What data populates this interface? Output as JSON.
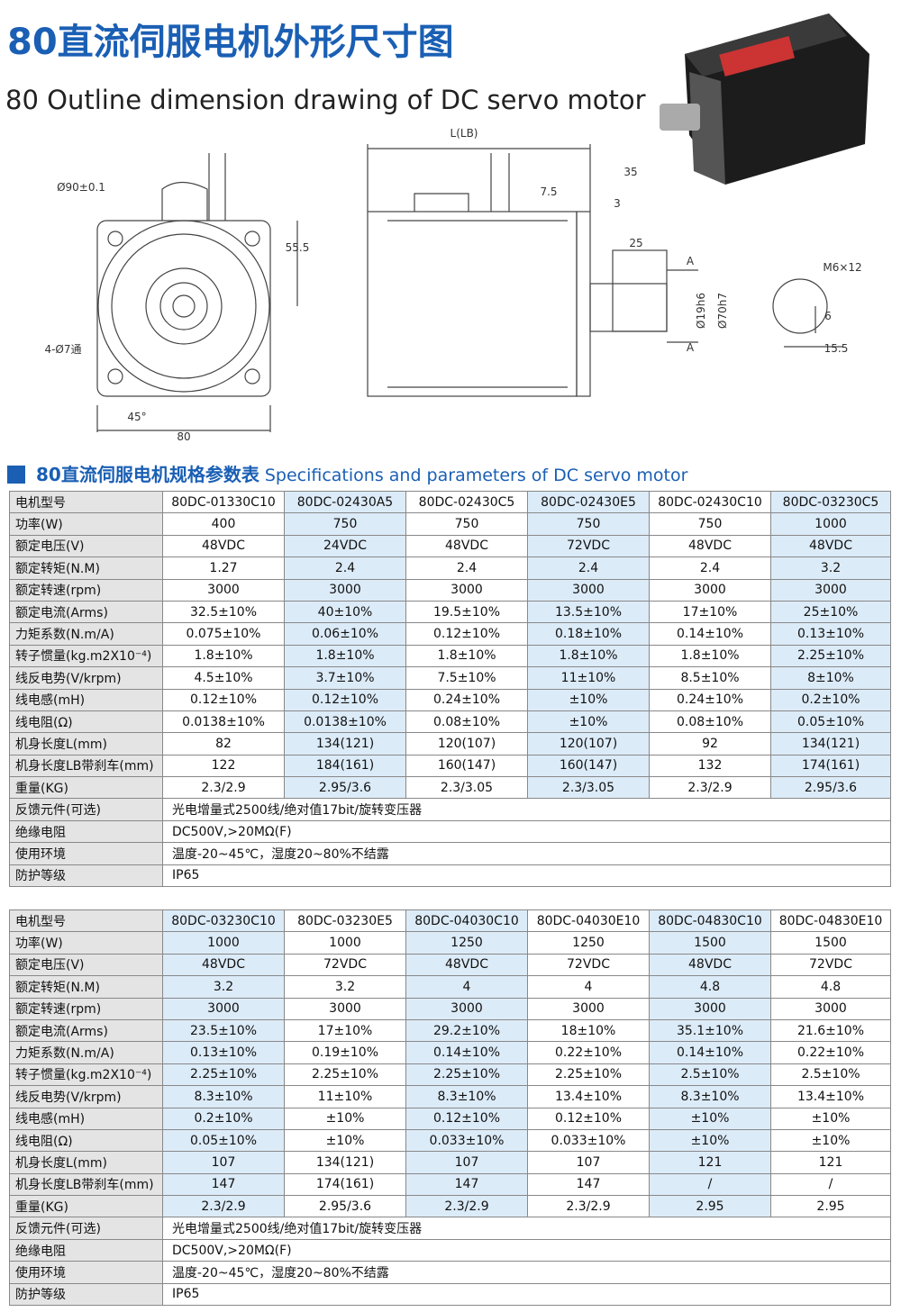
{
  "header": {
    "title": "80直流伺服电机外形尺寸图",
    "subtitle": "80 Outline dimension drawing of DC servo motor"
  },
  "drawing": {
    "labels": [
      "Ø90±0.1",
      "55.5",
      "4-Ø7通",
      "45°",
      "80",
      "L(LB)",
      "35",
      "7.5",
      "3",
      "25",
      "A",
      "A",
      "Ø19h6",
      "Ø70h7",
      "M6×12",
      "6",
      "15.5"
    ]
  },
  "section": {
    "title_cn": "80直流伺服电机规格参数表",
    "title_en": "Specifications and parameters of DC servo motor"
  },
  "tables": [
    {
      "header_label": "电机型号",
      "columns": [
        "80DC-01330C10",
        "80DC-02430A5",
        "80DC-02430C5",
        "80DC-02430E5",
        "80DC-02430C10",
        "80DC-03230C5"
      ],
      "rows": [
        {
          "label": "功率(W)",
          "values": [
            "400",
            "750",
            "750",
            "750",
            "750",
            "1000"
          ]
        },
        {
          "label": "额定电压(V)",
          "values": [
            "48VDC",
            "24VDC",
            "48VDC",
            "72VDC",
            "48VDC",
            "48VDC"
          ]
        },
        {
          "label": "额定转矩(N.M)",
          "values": [
            "1.27",
            "2.4",
            "2.4",
            "2.4",
            "2.4",
            "3.2"
          ]
        },
        {
          "label": "额定转速(rpm)",
          "values": [
            "3000",
            "3000",
            "3000",
            "3000",
            "3000",
            "3000"
          ]
        },
        {
          "label": "额定电流(Arms)",
          "values": [
            "32.5±10%",
            "40±10%",
            "19.5±10%",
            "13.5±10%",
            "17±10%",
            "25±10%"
          ]
        },
        {
          "label": "力矩系数(N.m/A)",
          "values": [
            "0.075±10%",
            "0.06±10%",
            "0.12±10%",
            "0.18±10%",
            "0.14±10%",
            "0.13±10%"
          ]
        },
        {
          "label": "转子惯量(kg.m2X10⁻⁴)",
          "values": [
            "1.8±10%",
            "1.8±10%",
            "1.8±10%",
            "1.8±10%",
            "1.8±10%",
            "2.25±10%"
          ]
        },
        {
          "label": "线反电势(V/krpm)",
          "values": [
            "4.5±10%",
            "3.7±10%",
            "7.5±10%",
            "11±10%",
            "8.5±10%",
            "8±10%"
          ]
        },
        {
          "label": "线电感(mH)",
          "values": [
            "0.12±10%",
            "0.12±10%",
            "0.24±10%",
            "±10%",
            "0.24±10%",
            "0.2±10%"
          ]
        },
        {
          "label": "线电阻(Ω)",
          "values": [
            "0.0138±10%",
            "0.0138±10%",
            "0.08±10%",
            "±10%",
            "0.08±10%",
            "0.05±10%"
          ]
        },
        {
          "label": "机身长度L(mm)",
          "values": [
            "82",
            "134(121)",
            "120(107)",
            "120(107)",
            "92",
            "134(121)"
          ]
        },
        {
          "label": "机身长度LB带刹车(mm)",
          "values": [
            "122",
            "184(161)",
            "160(147)",
            "160(147)",
            "132",
            "174(161)"
          ]
        },
        {
          "label": "重量(KG)",
          "values": [
            "2.3/2.9",
            "2.95/3.6",
            "2.3/3.05",
            "2.3/3.05",
            "2.3/2.9",
            "2.95/3.6"
          ]
        }
      ],
      "spans": [
        {
          "label": "反馈元件(可选)",
          "value": "光电增量式2500线/绝对值17bit/旋转变压器"
        },
        {
          "label": "绝缘电阻",
          "value": "DC500V,>20MΩ(F)"
        },
        {
          "label": "使用环境",
          "value": "温度-20~45℃，湿度20~80%不结露"
        },
        {
          "label": "防护等级",
          "value": "IP65"
        }
      ]
    },
    {
      "header_label": "电机型号",
      "columns": [
        "80DC-03230C10",
        "80DC-03230E5",
        "80DC-04030C10",
        "80DC-04030E10",
        "80DC-04830C10",
        "80DC-04830E10"
      ],
      "rows": [
        {
          "label": "功率(W)",
          "values": [
            "1000",
            "1000",
            "1250",
            "1250",
            "1500",
            "1500"
          ]
        },
        {
          "label": "额定电压(V)",
          "values": [
            "48VDC",
            "72VDC",
            "48VDC",
            "72VDC",
            "48VDC",
            "72VDC"
          ]
        },
        {
          "label": "额定转矩(N.M)",
          "values": [
            "3.2",
            "3.2",
            "4",
            "4",
            "4.8",
            "4.8"
          ]
        },
        {
          "label": "额定转速(rpm)",
          "values": [
            "3000",
            "3000",
            "3000",
            "3000",
            "3000",
            "3000"
          ]
        },
        {
          "label": "额定电流(Arms)",
          "values": [
            "23.5±10%",
            "17±10%",
            "29.2±10%",
            "18±10%",
            "35.1±10%",
            "21.6±10%"
          ]
        },
        {
          "label": "力矩系数(N.m/A)",
          "values": [
            "0.13±10%",
            "0.19±10%",
            "0.14±10%",
            "0.22±10%",
            "0.14±10%",
            "0.22±10%"
          ]
        },
        {
          "label": "转子惯量(kg.m2X10⁻⁴)",
          "values": [
            "2.25±10%",
            "2.25±10%",
            "2.25±10%",
            "2.25±10%",
            "2.5±10%",
            "2.5±10%"
          ]
        },
        {
          "label": "线反电势(V/krpm)",
          "values": [
            "8.3±10%",
            "11±10%",
            "8.3±10%",
            "13.4±10%",
            "8.3±10%",
            "13.4±10%"
          ]
        },
        {
          "label": "线电感(mH)",
          "values": [
            "0.2±10%",
            "±10%",
            "0.12±10%",
            "0.12±10%",
            "±10%",
            "±10%"
          ]
        },
        {
          "label": "线电阻(Ω)",
          "values": [
            "0.05±10%",
            "±10%",
            "0.033±10%",
            "0.033±10%",
            "±10%",
            "±10%"
          ]
        },
        {
          "label": "机身长度L(mm)",
          "values": [
            "107",
            "134(121)",
            "107",
            "107",
            "121",
            "121"
          ]
        },
        {
          "label": "机身长度LB带刹车(mm)",
          "values": [
            "147",
            "174(161)",
            "147",
            "147",
            "/",
            "/"
          ]
        },
        {
          "label": "重量(KG)",
          "values": [
            "2.3/2.9",
            "2.95/3.6",
            "2.3/2.9",
            "2.3/2.9",
            "2.95",
            "2.95"
          ]
        }
      ],
      "spans": [
        {
          "label": "反馈元件(可选)",
          "value": "光电增量式2500线/绝对值17bit/旋转变压器"
        },
        {
          "label": "绝缘电阻",
          "value": "DC500V,>20MΩ(F)"
        },
        {
          "label": "使用环境",
          "value": "温度-20~45℃，湿度20~80%不结露"
        },
        {
          "label": "防护等级",
          "value": "IP65"
        }
      ]
    }
  ]
}
